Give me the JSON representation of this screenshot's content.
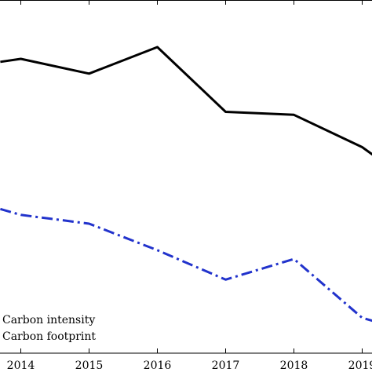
{
  "chart_data": {
    "type": "line",
    "title": "",
    "xlabel": "",
    "ylabel": "",
    "x_ticks": [
      "2014",
      "2015",
      "2016",
      "2017",
      "2018",
      "2019"
    ],
    "series": [
      {
        "name": "Carbon intensity",
        "color": "#000000",
        "line_style": "solid",
        "x": [
          2013.7,
          2014,
          2015,
          2016,
          2017,
          2018,
          2019,
          2019.6
        ],
        "y": [
          0.89,
          0.9,
          0.85,
          0.94,
          0.72,
          0.71,
          0.6,
          0.5
        ]
      },
      {
        "name": "Carbon footprint",
        "color": "#2233cc",
        "line_style": "dash-dot",
        "x": [
          2013.7,
          2014,
          2015,
          2016,
          2017,
          2018,
          2019,
          2019.6
        ],
        "y": [
          0.39,
          0.37,
          0.34,
          0.25,
          0.15,
          0.22,
          0.02,
          -0.02
        ]
      }
    ],
    "xlim": [
      2013.7,
      2019.6
    ],
    "ylim": [
      -0.1,
      1.1
    ],
    "grid": false,
    "legend_position": "bottom-left"
  }
}
